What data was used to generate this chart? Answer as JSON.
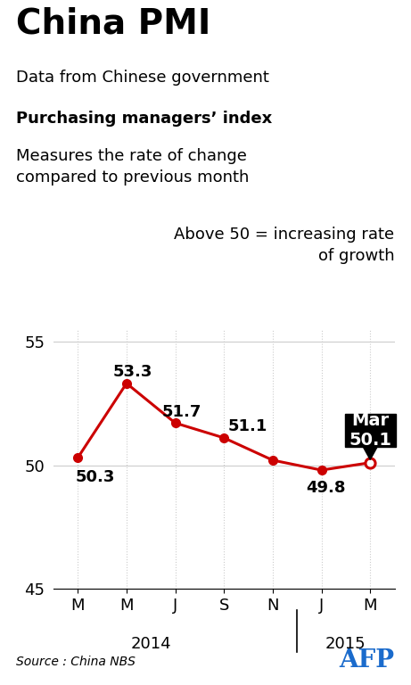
{
  "title": "China PMI",
  "subtitle1": "Data from Chinese government",
  "subtitle2_bold": "Purchasing managers’ index",
  "subtitle3": "Measures the rate of change\ncompared to previous month",
  "subtitle4": "Above 50 = increasing rate\nof growth",
  "x_labels": [
    "M",
    "M",
    "J",
    "S",
    "N",
    "J",
    "M"
  ],
  "values": [
    50.3,
    53.3,
    51.7,
    51.1,
    50.2,
    49.8,
    50.1
  ],
  "line_color": "#cc0000",
  "dot_color": "#cc0000",
  "ylim": [
    45,
    55.5
  ],
  "yticks": [
    45,
    50,
    55
  ],
  "grid_color": "#cccccc",
  "bg_color": "#ffffff",
  "source_text": "Source : China NBS",
  "annotation_fontsize": 13,
  "axis_fontsize": 13
}
